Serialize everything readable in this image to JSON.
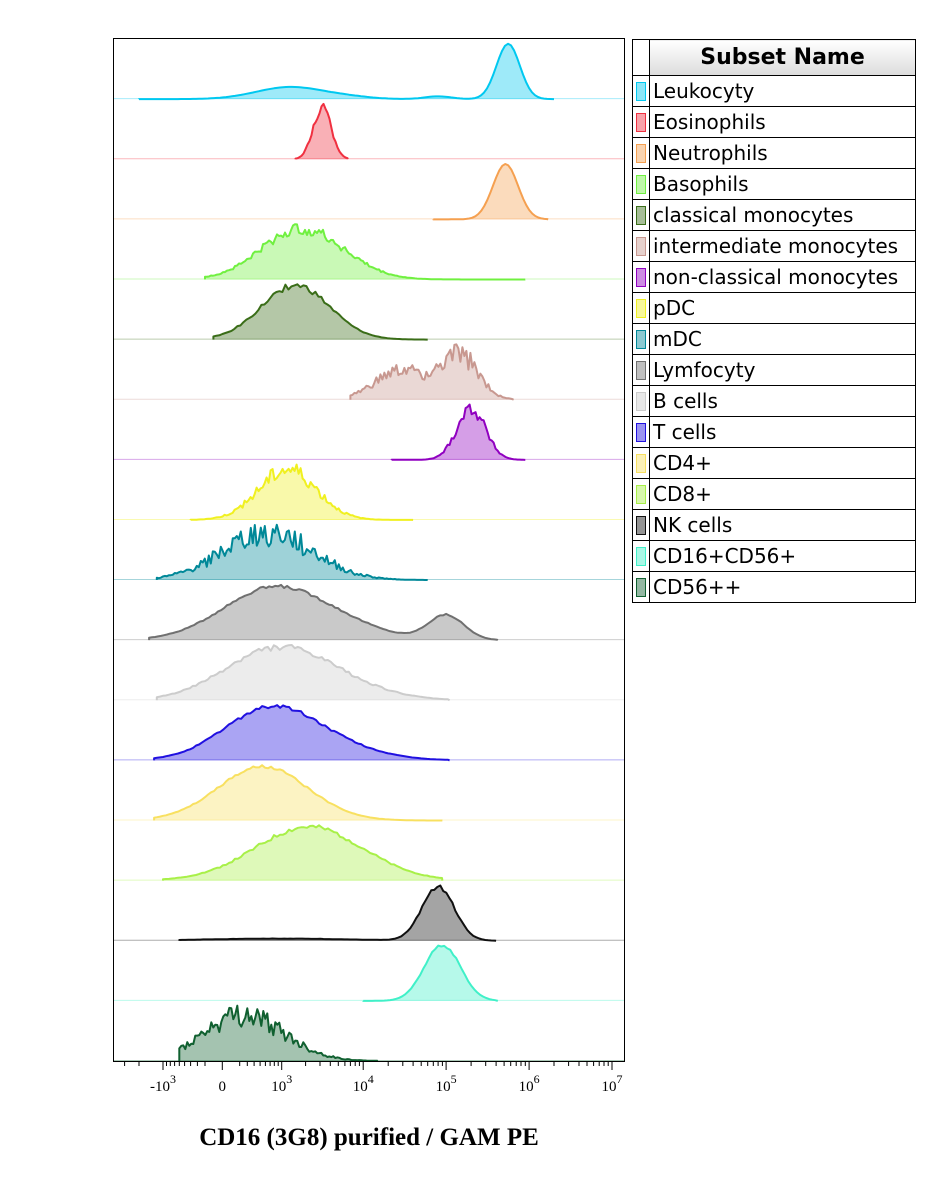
{
  "chart_data": {
    "type": "histogram-overlay",
    "xlabel": "CD16 (3G8) purified / GAM PE",
    "x_scale": "biexponential",
    "x_ticks": [
      {
        "value": -1000,
        "base": "-10",
        "exp": "3"
      },
      {
        "value": 0,
        "base": "0",
        "exp": ""
      },
      {
        "value": 1000,
        "base": "10",
        "exp": "3"
      },
      {
        "value": 10000,
        "base": "10",
        "exp": "4"
      },
      {
        "value": 100000,
        "base": "10",
        "exp": "5"
      },
      {
        "value": 1000000,
        "base": "10",
        "exp": "6"
      },
      {
        "value": 10000000,
        "base": "10",
        "exp": "7"
      }
    ],
    "legend_title": "Subset Name",
    "legend_placement": "right",
    "series": [
      {
        "name": "Leukocyty",
        "color": "#00c8f0",
        "peaks": [
          [
            1300,
            0.22,
            0.38
          ],
          [
            7000,
            0.03,
            0.25
          ],
          [
            80000,
            0.05,
            0.15
          ],
          [
            560000,
            1.0,
            0.13
          ]
        ],
        "range": [
          -2000,
          2000000
        ],
        "noise": 0.0
      },
      {
        "name": "Eosinophils",
        "color": "#f03040",
        "peaks": [
          [
            3200,
            1.0,
            0.1
          ]
        ],
        "range": [
          1500,
          6500
        ],
        "noise": 0.12
      },
      {
        "name": "Neutrophils",
        "color": "#f5a050",
        "peaks": [
          [
            520000,
            1.0,
            0.14
          ]
        ],
        "range": [
          70000,
          1700000
        ],
        "noise": 0.0
      },
      {
        "name": "Basophils",
        "color": "#70f040",
        "peaks": [
          [
            1200,
            0.8,
            0.4
          ],
          [
            3500,
            0.55,
            0.4
          ]
        ],
        "range": [
          -200,
          900000
        ],
        "noise": 0.12
      },
      {
        "name": "classical monocytes",
        "color": "#3a6d18",
        "peaks": [
          [
            1500,
            1.0,
            0.38
          ]
        ],
        "range": [
          -100,
          60000
        ],
        "noise": 0.06
      },
      {
        "name": "intermediate monocytes",
        "color": "#c89890",
        "peaks": [
          [
            30000,
            0.55,
            0.3
          ],
          [
            150000,
            0.8,
            0.2
          ]
        ],
        "range": [
          7000,
          650000
        ],
        "noise": 0.25
      },
      {
        "name": "non-classical monocytes",
        "color": "#9000c0",
        "peaks": [
          [
            200000,
            1.0,
            0.16
          ]
        ],
        "range": [
          22000,
          900000
        ],
        "noise": 0.15
      },
      {
        "name": "pDC",
        "color": "#f0f020",
        "peaks": [
          [
            1200,
            1.0,
            0.32
          ]
        ],
        "range": [
          -400,
          40000
        ],
        "noise": 0.18
      },
      {
        "name": "mDC",
        "color": "#008898",
        "peaks": [
          [
            650,
            1.0,
            0.5
          ]
        ],
        "range": [
          -1200,
          60000
        ],
        "noise": 0.3
      },
      {
        "name": "Lymfocyty",
        "color": "#707070",
        "peaks": [
          [
            700,
            1.0,
            0.55
          ],
          [
            5000,
            0.25,
            0.5
          ],
          [
            100000,
            0.5,
            0.2
          ]
        ],
        "range": [
          -1500,
          420000
        ],
        "noise": 0.03
      },
      {
        "name": "B cells",
        "color": "#cccccc",
        "peaks": [
          [
            700,
            1.0,
            0.55
          ],
          [
            4000,
            0.35,
            0.55
          ]
        ],
        "range": [
          -1200,
          110000
        ],
        "noise": 0.06
      },
      {
        "name": "T cells",
        "color": "#2010e0",
        "peaks": [
          [
            600,
            1.0,
            0.5
          ],
          [
            3000,
            0.35,
            0.55
          ]
        ],
        "range": [
          -1300,
          110000
        ],
        "noise": 0.04
      },
      {
        "name": "CD4+",
        "color": "#f8e060",
        "peaks": [
          [
            550,
            1.0,
            0.5
          ]
        ],
        "range": [
          -1300,
          90000
        ],
        "noise": 0.03
      },
      {
        "name": "CD8+",
        "color": "#a8f048",
        "peaks": [
          [
            2200,
            1.0,
            0.6
          ]
        ],
        "range": [
          -1000,
          90000
        ],
        "noise": 0.05
      },
      {
        "name": "NK cells",
        "color": "#101010",
        "peaks": [
          [
            80000,
            1.0,
            0.18
          ],
          [
            900,
            0.04,
            0.8
          ]
        ],
        "range": [
          -600,
          400000
        ],
        "noise": 0.05
      },
      {
        "name": "CD16+CD56+",
        "color": "#40f0c8",
        "peaks": [
          [
            90000,
            1.0,
            0.2
          ]
        ],
        "range": [
          10000,
          420000
        ],
        "noise": 0.03
      },
      {
        "name": "CD56++",
        "color": "#106030",
        "peaks": [
          [
            250,
            1.0,
            0.45
          ]
        ],
        "range": [
          -600,
          15000
        ],
        "noise": 0.28
      }
    ]
  }
}
